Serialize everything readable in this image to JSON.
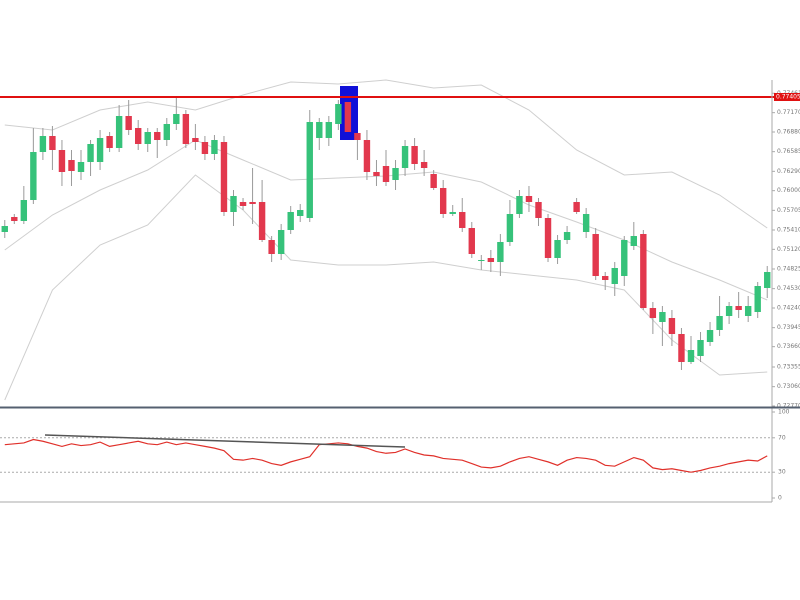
{
  "chart_data": [
    {
      "type": "candlestick",
      "up_color": "#36c27a",
      "down_color": "#e2384d",
      "band_color": "#cfcfcf",
      "ylim": [
        0.7277,
        0.7766
      ],
      "yticks": [
        0.77461,
        {
          "value": 0.7717,
          "label": "0.77170"
        },
        {
          "value": 0.7688,
          "label": "0.76880"
        },
        0.76585,
        {
          "value": 0.7629,
          "label": "0.76290"
        },
        {
          "value": 0.76,
          "label": "0.76000"
        },
        0.75705,
        {
          "value": 0.7541,
          "label": "0.75410"
        },
        {
          "value": 0.7512,
          "label": "0.75120"
        },
        0.74825,
        {
          "value": 0.7453,
          "label": "0.74530"
        },
        {
          "value": 0.7424,
          "label": "0.74240"
        },
        0.73945,
        {
          "value": 0.7366,
          "label": "0.73660"
        },
        0.73355,
        {
          "value": 0.7306,
          "label": "0.73060"
        },
        {
          "value": 0.7277,
          "label": "0.72770"
        }
      ],
      "price_line": 0.77405,
      "price_line_color": "#e01010",
      "open": [
        0.7538,
        0.75605,
        0.75545,
        0.7586,
        0.7658,
        0.7682,
        0.7661,
        0.7646,
        0.7628,
        0.7643,
        0.7643,
        0.7682,
        0.7664,
        0.7712,
        0.7694,
        0.767,
        0.7688,
        0.7676,
        0.77,
        0.7715,
        0.7679,
        0.7673,
        0.7655,
        0.7673,
        0.7568,
        0.7583,
        0.7583,
        0.7583,
        0.7526,
        0.7505,
        0.7541,
        0.7562,
        0.7559,
        0.7679,
        0.7679,
        0.77,
        0.7733,
        0.76865,
        0.7676,
        0.7628,
        0.7637,
        0.7616,
        0.7634,
        0.7667,
        0.7643,
        0.7625,
        0.7604,
        0.7565,
        0.7568,
        0.7544,
        0.74945,
        0.7499,
        0.7493,
        0.7523,
        0.7565,
        0.7592,
        0.7583,
        0.7559,
        0.7499,
        0.7526,
        0.7583,
        0.7538,
        0.7535,
        0.7472,
        0.746,
        0.7472,
        0.7517,
        0.7535,
        0.7424,
        0.7403,
        0.7409,
        0.7385,
        0.7343,
        0.7352,
        0.7373,
        0.7391,
        0.7412,
        0.7427,
        0.7412,
        0.7418,
        0.7454
      ],
      "high": [
        0.7556,
        0.7565,
        0.7607,
        0.7694,
        0.7694,
        0.7697,
        0.7676,
        0.7661,
        0.7661,
        0.7676,
        0.7691,
        0.7688,
        0.77285,
        0.7736,
        0.7706,
        0.7694,
        0.7694,
        0.7709,
        0.7739,
        0.7721,
        0.77,
        0.7682,
        0.76835,
        0.7682,
        0.7601,
        0.7589,
        0.7634,
        0.7616,
        0.7532,
        0.755,
        0.7577,
        0.758,
        0.7721,
        0.7709,
        0.7712,
        0.7736,
        0.7739,
        0.7694,
        0.7691,
        0.7646,
        0.7661,
        0.7646,
        0.7676,
        0.7679,
        0.7661,
        0.7631,
        0.7616,
        0.75785,
        0.7589,
        0.7553,
        0.75035,
        0.7511,
        0.7535,
        0.7586,
        0.7601,
        0.7607,
        0.7589,
        0.7565,
        0.75335,
        0.7547,
        0.7589,
        0.7574,
        0.7544,
        0.7478,
        0.7493,
        0.7532,
        0.7553,
        0.7541,
        0.7433,
        0.7427,
        0.7421,
        0.7394,
        0.7382,
        0.7388,
        0.7403,
        0.7442,
        0.7433,
        0.7448,
        0.7442,
        0.7463,
        0.7487
      ],
      "low": [
        0.7529,
        0.755,
        0.755,
        0.758,
        0.7646,
        0.7631,
        0.7607,
        0.7607,
        0.7616,
        0.7622,
        0.7631,
        0.7658,
        0.7658,
        0.76835,
        0.7661,
        0.7658,
        0.7649,
        0.7667,
        0.7691,
        0.7664,
        0.7661,
        0.7646,
        0.7646,
        0.7562,
        0.7547,
        0.7571,
        0.755,
        0.7523,
        0.7493,
        0.7496,
        0.7535,
        0.7553,
        0.7553,
        0.7661,
        0.7667,
        0.7691,
        0.7682,
        0.7646,
        0.7616,
        0.7607,
        0.7607,
        0.7601,
        0.7622,
        0.7631,
        0.7622,
        0.7601,
        0.7559,
        0.7562,
        0.7538,
        0.7499,
        0.7481,
        0.7478,
        0.7472,
        0.7517,
        0.7559,
        0.7568,
        0.7547,
        0.7493,
        0.749,
        0.752,
        0.7565,
        0.7529,
        0.7466,
        0.7451,
        0.7442,
        0.7457,
        0.7511,
        0.7421,
        0.7385,
        0.7367,
        0.7367,
        0.7331,
        0.734,
        0.7343,
        0.7367,
        0.7382,
        0.74,
        0.7409,
        0.7403,
        0.7409,
        0.7439
      ],
      "close": [
        0.7547,
        0.75545,
        0.7586,
        0.7658,
        0.7682,
        0.7661,
        0.7628,
        0.76295,
        0.7643,
        0.767,
        0.7679,
        0.7664,
        0.7712,
        0.7691,
        0.767,
        0.7688,
        0.7676,
        0.77,
        0.7715,
        0.767,
        0.7673,
        0.7655,
        0.7676,
        0.7568,
        0.7592,
        0.7577,
        0.758,
        0.7526,
        0.7505,
        0.7541,
        0.7568,
        0.7571,
        0.7703,
        0.7703,
        0.7703,
        0.773,
        0.7688,
        0.7676,
        0.7628,
        0.7622,
        0.7613,
        0.7634,
        0.7667,
        0.764,
        0.7634,
        0.7604,
        0.7565,
        0.7568,
        0.7544,
        0.7505,
        0.7496,
        0.7493,
        0.7523,
        0.7565,
        0.7592,
        0.7583,
        0.7559,
        0.7499,
        0.7526,
        0.7538,
        0.7568,
        0.7565,
        0.7472,
        0.7466,
        0.7484,
        0.7526,
        0.7532,
        0.7424,
        0.7409,
        0.7418,
        0.7385,
        0.7343,
        0.7361,
        0.7376,
        0.7391,
        0.7412,
        0.7427,
        0.7421,
        0.7427,
        0.7457,
        0.7478
      ],
      "bands": [
        {
          "x": [
            0,
            5,
            10,
            15,
            20,
            25,
            30,
            35,
            40,
            45,
            50,
            55,
            60,
            65,
            70,
            75,
            80
          ],
          "values": [
            0.76985,
            0.7691,
            0.7721,
            0.7733,
            0.7721,
            0.77435,
            0.7763,
            0.776,
            0.7766,
            0.7754,
            0.77585,
            0.7721,
            0.7661,
            0.76235,
            0.7628,
            0.75935,
            0.7544
          ]
        },
        {
          "x": [
            0,
            5,
            10,
            15,
            20,
            25,
            30,
            35,
            40,
            45,
            50,
            55,
            60,
            65,
            70,
            75,
            80
          ],
          "values": [
            0.7511,
            0.75635,
            0.7601,
            0.7631,
            0.7676,
            0.7646,
            0.7616,
            0.7619,
            0.7622,
            0.7628,
            0.7613,
            0.75785,
            0.7553,
            0.7526,
            0.7493,
            0.7466,
            0.7436
          ]
        },
        {
          "x": [
            0,
            5,
            10,
            15,
            20,
            25,
            30,
            35,
            40,
            45,
            50,
            55,
            60,
            65,
            70,
            75,
            80
          ],
          "values": [
            0.7286,
            0.7451,
            0.75185,
            0.75485,
            0.76235,
            0.7571,
            0.7496,
            0.74885,
            0.74885,
            0.7493,
            0.7481,
            0.74735,
            0.7466,
            0.7451,
            0.7376,
            0.73235,
            0.7328
          ]
        }
      ]
    },
    {
      "type": "line",
      "color": "#e0302a",
      "grid": true,
      "ylim": [
        0,
        100
      ],
      "yticks": [
        100,
        70,
        30,
        0
      ],
      "values": [
        62,
        63,
        64,
        68,
        66,
        63,
        60,
        63,
        61,
        62,
        65,
        60,
        62,
        64,
        66,
        63,
        62,
        65,
        62,
        64,
        62,
        60,
        58,
        55,
        45,
        44,
        46,
        44,
        40,
        38,
        42,
        45,
        48,
        62,
        63,
        64,
        63,
        60,
        58,
        54,
        52,
        53,
        57,
        53,
        50,
        49,
        46,
        45,
        44,
        40,
        36,
        35,
        37,
        42,
        46,
        48,
        45,
        42,
        38,
        44,
        47,
        46,
        44,
        38,
        37,
        42,
        47,
        44,
        35,
        33,
        34,
        32,
        30,
        32,
        35,
        37,
        40,
        42,
        44,
        43,
        49
      ]
    }
  ]
}
